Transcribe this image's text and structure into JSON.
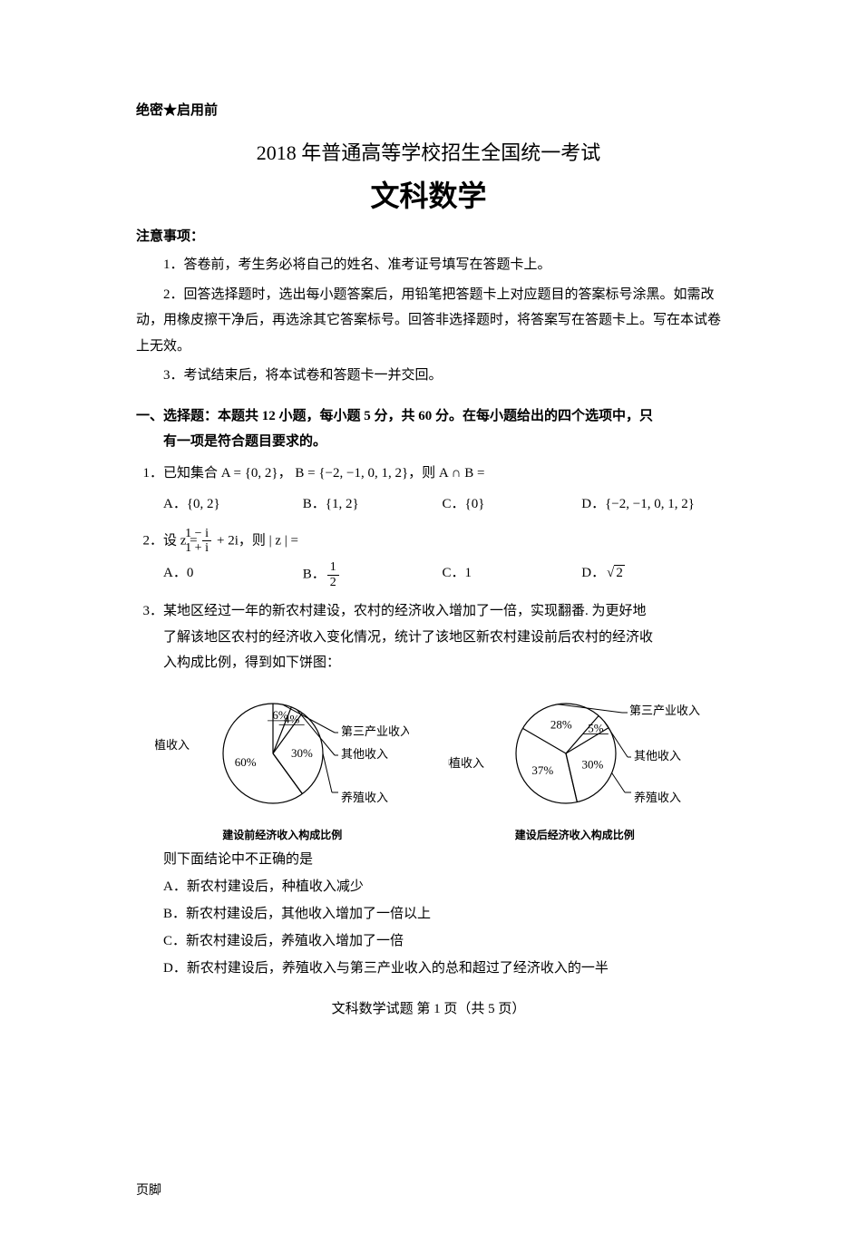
{
  "header": {
    "top_left": "绝密★启用前",
    "title1": "2018 年普通高等学校招生全国统一考试",
    "title2": "文科数学"
  },
  "notice": {
    "heading": "注意事项：",
    "items": [
      "1．答卷前，考生务必将自己的姓名、准考证号填写在答题卡上。",
      "2．回答选择题时，选出每小题答案后，用铅笔把答题卡上对应题目的答案标号涂黑。如需改动，用橡皮擦干净后，再选涂其它答案标号。回答非选择题时，将答案写在答题卡上。写在本试卷上无效。",
      "3．考试结束后，将本试卷和答题卡一并交回。"
    ]
  },
  "section1": {
    "title_line1": "一、选择题：本题共 12 小题，每小题 5 分，共 60 分。在每小题给出的四个选项中，只",
    "title_line2": "有一项是符合题目要求的。"
  },
  "q1": {
    "text": "1．已知集合 A = {0, 2}，  B = {−2, −1, 0, 1, 2}，则 A ∩ B =",
    "A": "A．{0, 2}",
    "B": "B．{1, 2}",
    "C": "C．{0}",
    "D": "D．{−2, −1, 0, 1, 2}"
  },
  "q2": {
    "prefix": "2．设 z = ",
    "frac_num": "1 − i",
    "frac_den": "1 + i",
    "suffix": " + 2i，则 | z | =",
    "A": "A．0",
    "B_prefix": "B．",
    "B_num": "1",
    "B_den": "2",
    "C": "C．1",
    "D_prefix": "D．",
    "D_rad": "2"
  },
  "q3": {
    "line1": "3．某地区经过一年的新农村建设，农村的经济收入增加了一倍，实现翻番. 为更好地",
    "line2": "了解该地区农村的经济收入变化情况，统计了该地区新农村建设前后农村的经济收",
    "line3": "入构成比例，得到如下饼图：",
    "after_charts": "则下面结论中不正确的是",
    "A": "A．新农村建设后，种植收入减少",
    "B": "B．新农村建设后，其他收入增加了一倍以上",
    "C": "C．新农村建设后，养殖收入增加了一倍",
    "D": "D．新农村建设后，养殖收入与第三产业收入的总和超过了经济收入的一半"
  },
  "charts": {
    "pie_stroke": "#000000",
    "pie_fill": "#ffffff",
    "text_color": "#000000",
    "font_size_label": 13,
    "font_size_pct": 13,
    "radius": 55,
    "left": {
      "caption": "建设前经济收入构成比例",
      "slices": [
        {
          "label": "种植收入",
          "pct": "60%",
          "value": 60
        },
        {
          "label": "第三产业收入",
          "pct": "6%",
          "value": 6
        },
        {
          "label": "其他收入",
          "pct": "4%",
          "value": 4
        },
        {
          "label": "养殖收入",
          "pct": "30%",
          "value": 30
        }
      ]
    },
    "right": {
      "caption": "建设后经济收入构成比例",
      "slices": [
        {
          "label": "种植收入",
          "pct": "37%",
          "value": 37
        },
        {
          "label": "第三产业收入",
          "pct": "28%",
          "value": 28
        },
        {
          "label": "其他收入",
          "pct": "5%",
          "value": 5
        },
        {
          "label": "养殖收入",
          "pct": "30%",
          "value": 30
        }
      ]
    }
  },
  "footer": {
    "center": "文科数学试题  第 1 页（共 5 页）",
    "bottom": "页脚"
  }
}
